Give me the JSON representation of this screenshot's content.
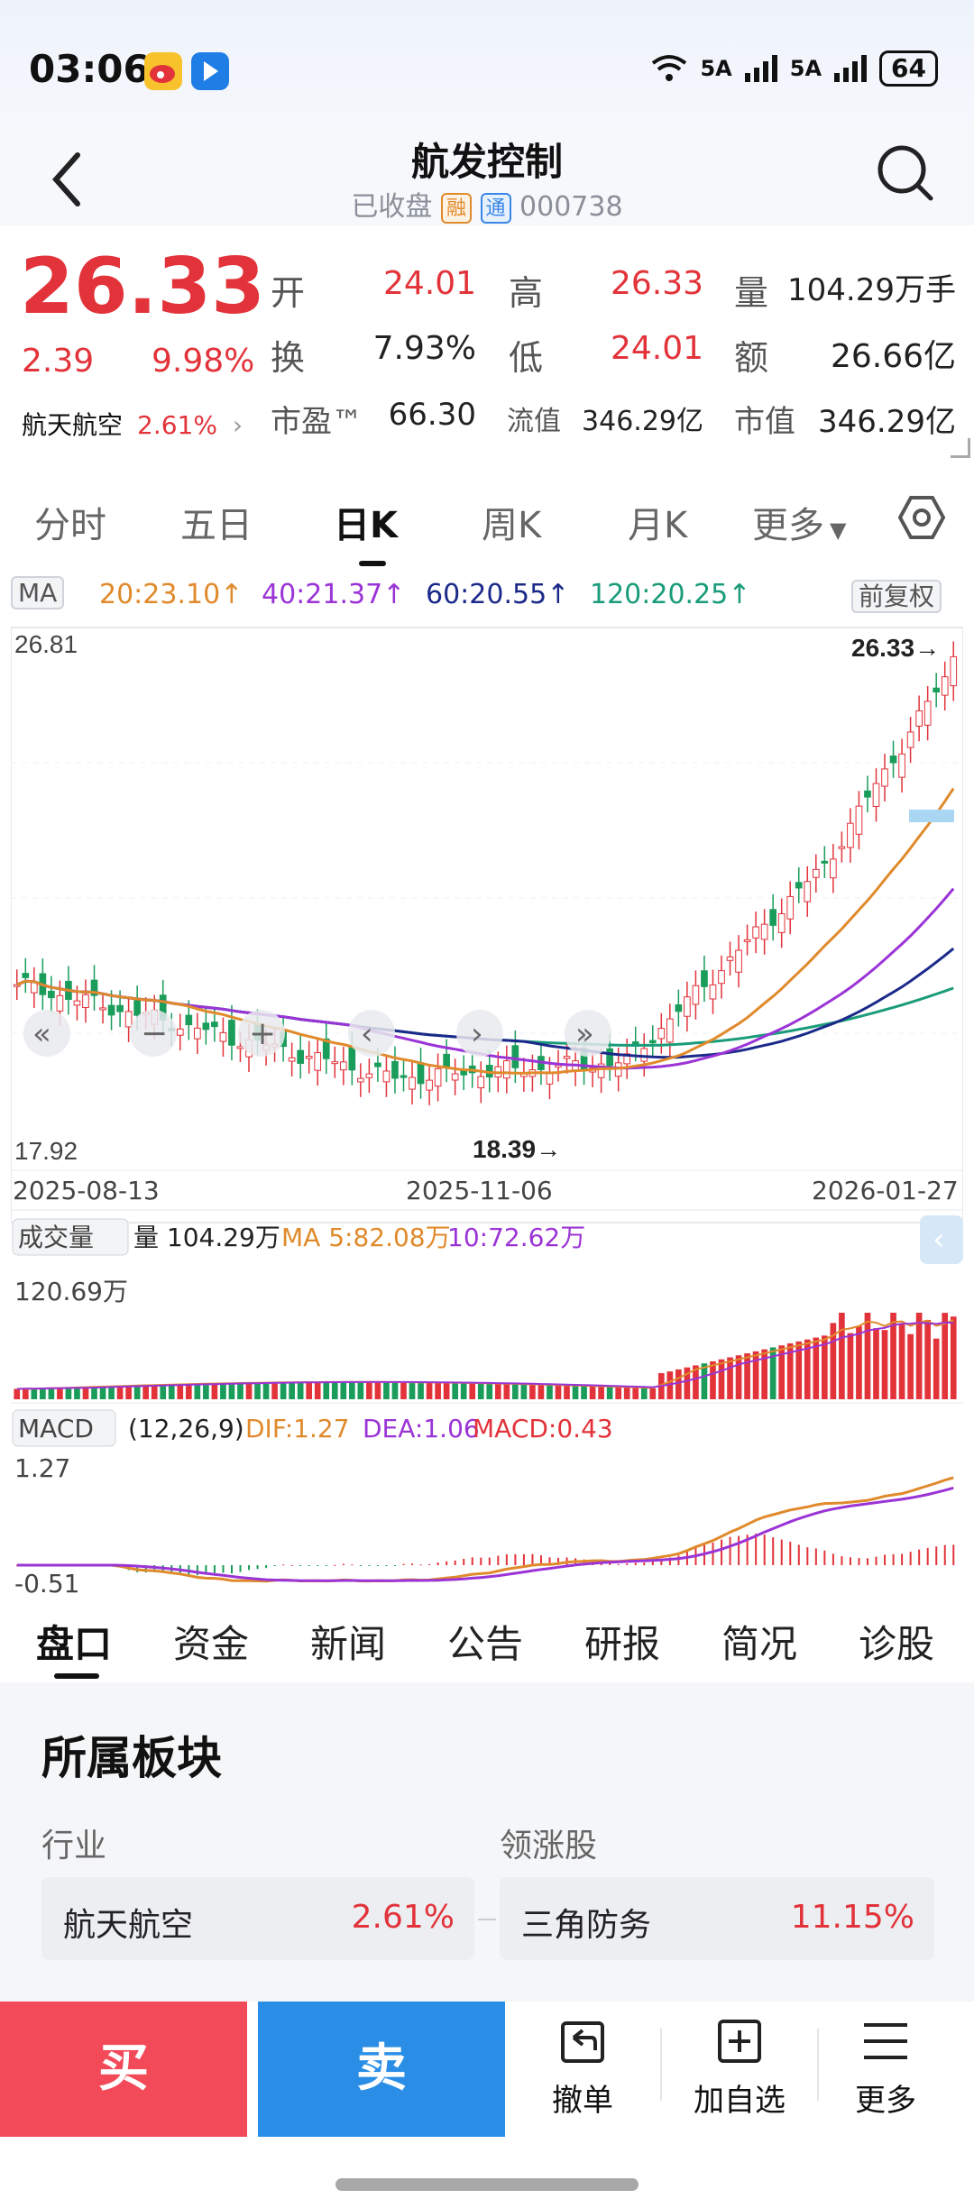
{
  "status": {
    "time": "03:06",
    "net1": "5A",
    "net2": "5A",
    "battery": "64"
  },
  "header": {
    "title": "航发控制",
    "state": "已收盘",
    "tag_margin": "融",
    "tag_connect": "通",
    "code": "000738"
  },
  "quote": {
    "price": "26.33",
    "change": "2.39",
    "change_pct": "9.98%",
    "sector_name": "航天航空",
    "sector_pct": "2.61%",
    "rows": [
      {
        "l1": "开",
        "v1": "24.01",
        "l2": "高",
        "v2": "26.33",
        "l3": "量",
        "v3": "104.29万手"
      },
      {
        "l1": "换",
        "v1": "7.93%",
        "l2": "低",
        "v2": "24.01",
        "l3": "额",
        "v3": "26.66亿"
      },
      {
        "l1": "市盈™",
        "v1": "66.30",
        "l2": "流值",
        "v2": "346.29亿",
        "l3": "市值",
        "v3": "346.29亿"
      }
    ]
  },
  "chart_tabs": [
    "分时",
    "五日",
    "日K",
    "周K",
    "月K",
    "更多"
  ],
  "kline": {
    "ma_label": "MA",
    "ma20": "20:23.10↑",
    "ma40": "40:21.37↑",
    "ma60": "60:20.55↑",
    "ma120": "120:20.25↑",
    "adjust": "前复权",
    "high_label": "26.81",
    "low_label": "17.92",
    "max_mark": "26.33→",
    "min_mark": "18.39→",
    "dates": [
      "2025-08-13",
      "2025-11-06",
      "2026-01-27"
    ],
    "colors": {
      "up": "#e2333a",
      "down": "#1a9c5a",
      "ma20": "#e08a2c",
      "ma40": "#9b34d6",
      "ma60": "#1b2a8a",
      "ma120": "#1a9c7a"
    }
  },
  "volume": {
    "label": "成交量",
    "vol": "量 104.29万",
    "ma5": "MA 5:82.08万",
    "ma10": "10:72.62万",
    "max": "120.69万"
  },
  "macd": {
    "label": "MACD",
    "params": "(12,26,9)",
    "dif": "DIF:1.27",
    "dea": "DEA:1.06",
    "macd": "MACD:0.43",
    "top": "1.27",
    "bottom": "-0.51"
  },
  "bottom_tabs": [
    "盘口",
    "资金",
    "新闻",
    "公告",
    "研报",
    "简况",
    "诊股"
  ],
  "section": {
    "title": "所属板块",
    "industry_head": "行业",
    "leader_head": "领涨股",
    "industry_name": "航天航空",
    "industry_pct": "2.61%",
    "leader_name": "三角防务",
    "leader_pct": "11.15%"
  },
  "actions": {
    "buy": "买",
    "sell": "卖",
    "cancel": "撤单",
    "add": "加自选",
    "more": "更多"
  }
}
